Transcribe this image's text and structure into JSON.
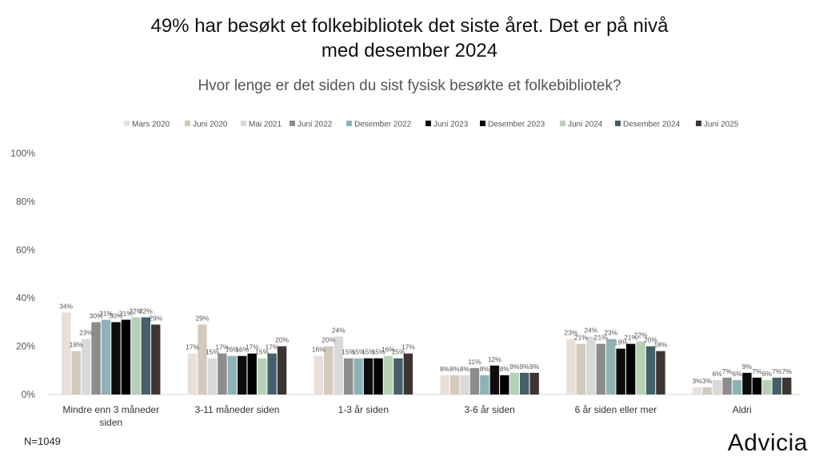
{
  "header": {
    "title_line1": "49% har besøkt et folkebibliotek det siste året. Det er på nivå",
    "title_line2": "med desember 2024"
  },
  "footer": {
    "sample_size": "N=1049",
    "brand": "Advicia"
  },
  "chart_data": {
    "type": "bar",
    "title": "49% har besøkt et folkebibliotek det siste året. Det er på nivå med desember 2024",
    "subtitle": "Hvor lenge er det siden du sist fysisk besøkte et folkebibliotek?",
    "xlabel": "",
    "ylabel": "",
    "ylim": [
      0,
      100
    ],
    "yticks": [
      "0%",
      "20%",
      "40%",
      "60%",
      "80%",
      "100%"
    ],
    "grid": false,
    "legend_position": "top",
    "categories": [
      [
        "Mindre enn 3 måneder",
        "siden"
      ],
      [
        "3-11 måneder siden"
      ],
      [
        "1-3 år siden"
      ],
      [
        "3-6 år siden"
      ],
      [
        "6 år siden eller mer"
      ],
      [
        "Aldri"
      ]
    ],
    "series": [
      {
        "name": "Mars 2020",
        "color": "#e8e0d8",
        "values": [
          34,
          17,
          16,
          8,
          23,
          3
        ]
      },
      {
        "name": "Juni 2020",
        "color": "#d3c9bd",
        "values": [
          18,
          29,
          20,
          8,
          21,
          3
        ]
      },
      {
        "name": "Mai 2021",
        "color": "#d9d9d9",
        "values": [
          23,
          15,
          24,
          8,
          24,
          6
        ]
      },
      {
        "name": "Juni 2022",
        "color": "#8c8c8c",
        "values": [
          30,
          17,
          15,
          11,
          21,
          7
        ]
      },
      {
        "name": "Desember 2022",
        "color": "#8fb3b5",
        "values": [
          31,
          16,
          15,
          8,
          23,
          6
        ]
      },
      {
        "name": "Juni 2023",
        "color": "#0d0d0d",
        "values": [
          30,
          16,
          15,
          12,
          19,
          9
        ]
      },
      {
        "name": "Desember 2023",
        "color": "#000000",
        "values": [
          31,
          17,
          15,
          8,
          21,
          7
        ]
      },
      {
        "name": "Juni 2024",
        "color": "#b7d1b7",
        "values": [
          32,
          15,
          16,
          9,
          22,
          6
        ]
      },
      {
        "name": "Desember 2024",
        "color": "#45606a",
        "values": [
          32,
          17,
          15,
          9,
          20,
          7
        ]
      },
      {
        "name": "Juni 2025",
        "color": "#3e3431",
        "values": [
          29,
          20,
          17,
          9,
          18,
          7
        ]
      }
    ]
  }
}
